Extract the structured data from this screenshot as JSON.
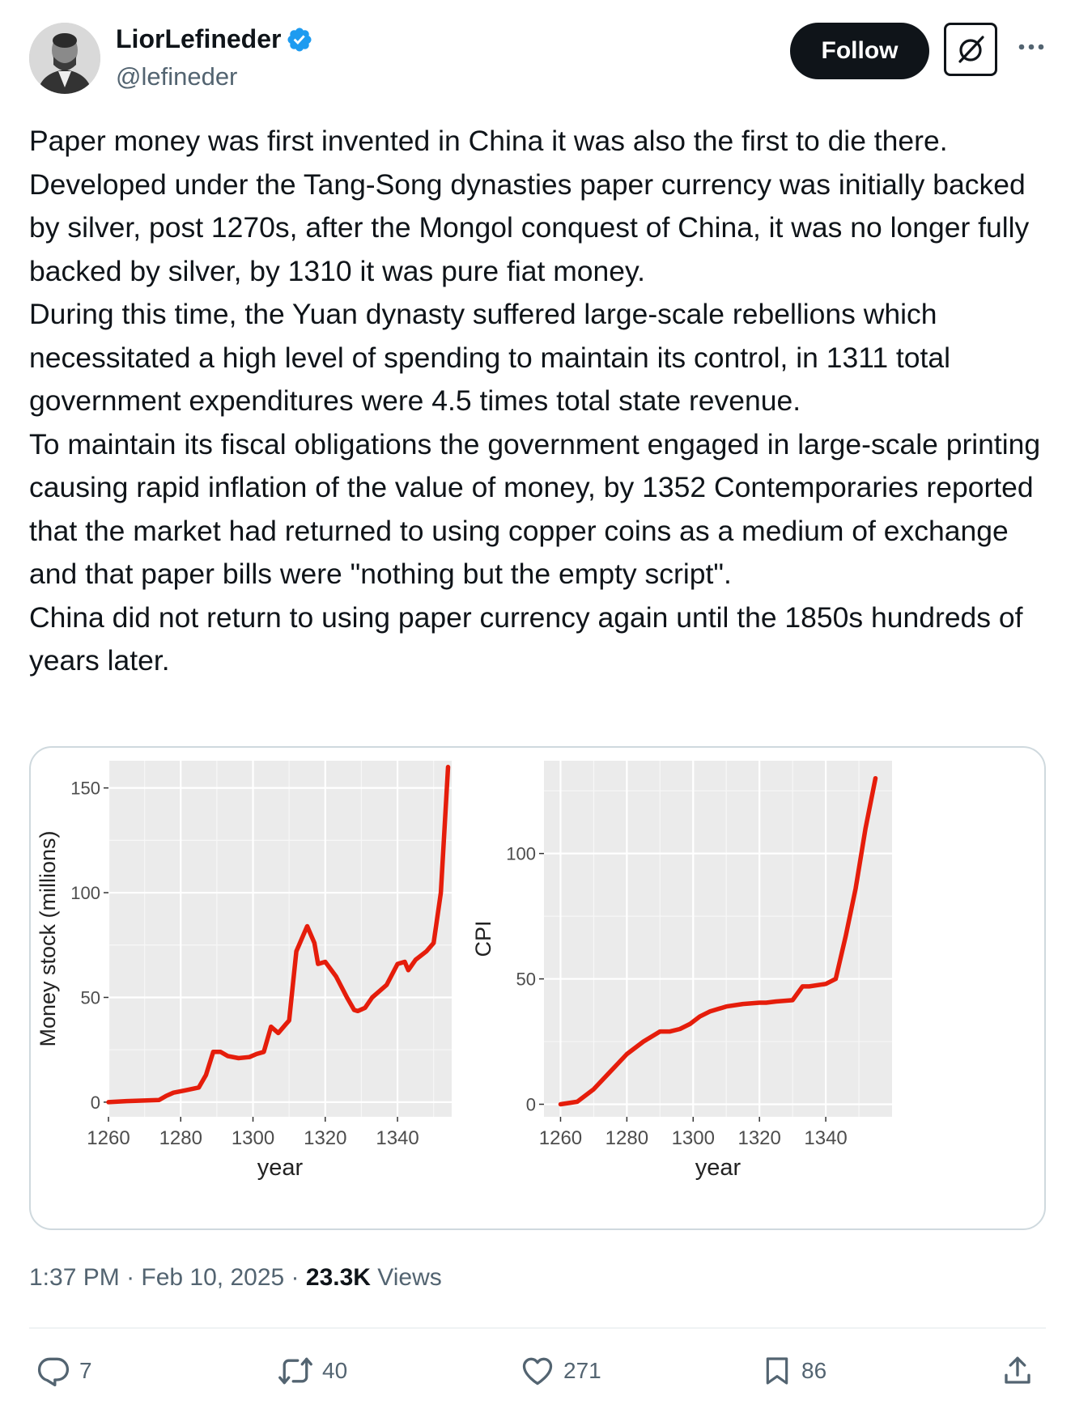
{
  "author": {
    "display_name": "LiorLefineder",
    "handle": "@lefineder",
    "verified": true,
    "accent_color": "#1d9bf0"
  },
  "header": {
    "follow_label": "Follow",
    "grok_icon": "slashed-circle-icon",
    "more_icon": "ellipsis-icon"
  },
  "tweet": {
    "paragraphs": [
      "Paper money was first invented in China it was also the first to die there. Developed under the Tang-Song dynasties paper currency was initially backed by silver, post 1270s, after the Mongol conquest of China, it was no longer fully backed by silver, by 1310 it was pure fiat money.",
      "During this time, the Yuan dynasty suffered large-scale rebellions which necessitated a high level of spending to maintain its control, in 1311 total government expenditures were 4.5 times total state revenue.",
      "To maintain its fiscal obligations the government engaged in large-scale printing causing rapid inflation of the value of money, by 1352 Contemporaries reported that the market had returned to using copper coins as a medium of exchange and that paper bills were \"nothing but the empty script\".",
      "China did not return to using paper currency again until the 1850s hundreds of years later."
    ]
  },
  "chart_data": [
    {
      "type": "line",
      "ylabel": "Money stock (millions)",
      "xlabel": "year",
      "xlim": [
        1260,
        1355
      ],
      "ylim": [
        -7,
        163
      ],
      "x_ticks": [
        1260,
        1280,
        1300,
        1320,
        1340
      ],
      "y_ticks": [
        0,
        50,
        100,
        150
      ],
      "grid": true,
      "series_color": "#e51d0b",
      "series": [
        {
          "x": [
            1260,
            1265,
            1274,
            1276,
            1278,
            1281,
            1285,
            1287,
            1289,
            1291,
            1293,
            1296,
            1299,
            1301,
            1303,
            1305,
            1307,
            1309,
            1310,
            1312,
            1314,
            1315,
            1317,
            1318,
            1320,
            1323,
            1326,
            1328,
            1329,
            1331,
            1333,
            1337,
            1340,
            1342,
            1343,
            1345,
            1348,
            1350,
            1352,
            1354
          ],
          "y": [
            0,
            0.5,
            1,
            3,
            4.5,
            5.5,
            7,
            13,
            24,
            24,
            22,
            21,
            21.5,
            23,
            24,
            36,
            33,
            37,
            39,
            72,
            80,
            84,
            76,
            66,
            67,
            60,
            50,
            44,
            43.5,
            45,
            50,
            56,
            66,
            67,
            63,
            68,
            72,
            76,
            100,
            160
          ]
        }
      ]
    },
    {
      "type": "line",
      "ylabel": "CPI",
      "xlabel": "year",
      "xlim": [
        1255,
        1360
      ],
      "ylim": [
        -5,
        137
      ],
      "x_ticks": [
        1260,
        1280,
        1300,
        1320,
        1340
      ],
      "y_ticks": [
        0,
        50,
        100
      ],
      "grid": true,
      "series_color": "#e51d0b",
      "series": [
        {
          "x": [
            1260,
            1265,
            1270,
            1275,
            1280,
            1285,
            1290,
            1293,
            1296,
            1299,
            1302,
            1305,
            1310,
            1315,
            1320,
            1322,
            1325,
            1330,
            1333,
            1335,
            1340,
            1343,
            1346,
            1349,
            1352,
            1355
          ],
          "y": [
            0,
            1,
            6,
            13,
            20,
            25,
            29,
            29,
            30,
            32,
            35,
            37,
            39,
            40,
            40.5,
            40.5,
            41,
            41.5,
            47,
            47,
            48,
            50,
            67,
            86,
            110,
            130
          ]
        }
      ]
    }
  ],
  "meta": {
    "time": "1:37 PM",
    "separator": " · ",
    "date": "Feb 10, 2025",
    "views_count": "23.3K",
    "views_label": " Views"
  },
  "actions": {
    "replies": "7",
    "reposts": "40",
    "likes": "271",
    "bookmarks": "86"
  }
}
